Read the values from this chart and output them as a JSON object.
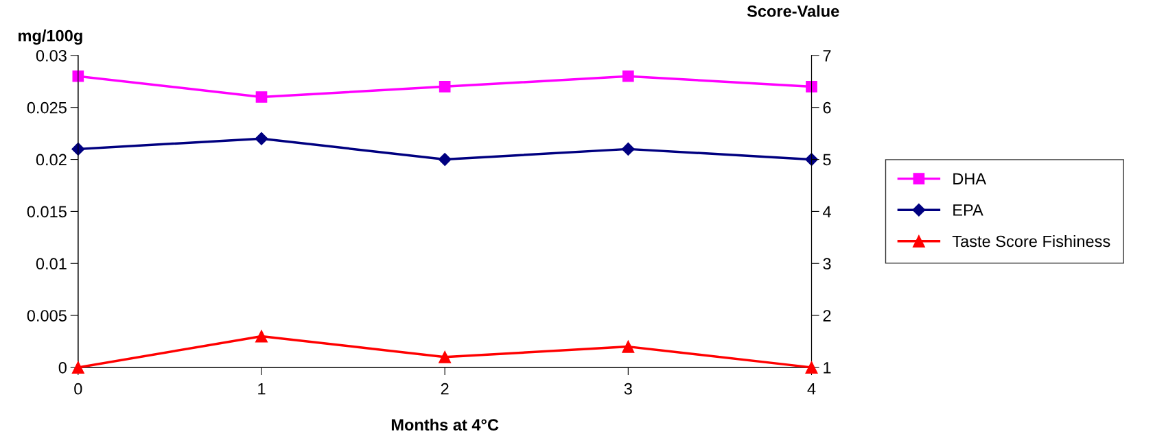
{
  "chart_data": {
    "type": "line",
    "xlabel": "Months at 4°C",
    "ylabel": "mg/100g",
    "y2label": "Score-Value",
    "x": [
      0,
      1,
      2,
      3,
      4
    ],
    "series": [
      {
        "name": "DHA",
        "color": "#ff00ff",
        "marker": "square",
        "values": [
          0.028,
          0.026,
          0.027,
          0.028,
          0.027
        ]
      },
      {
        "name": "EPA",
        "color": "#000080",
        "marker": "diamond",
        "values": [
          0.021,
          0.022,
          0.02,
          0.021,
          0.02
        ]
      },
      {
        "name": "Taste Score Fishiness",
        "color": "#ff0000",
        "marker": "triangle",
        "axis": "y2",
        "values": [
          1.0,
          1.6,
          1.2,
          1.4,
          1.0
        ]
      }
    ],
    "xlim": [
      0,
      4
    ],
    "xticks": [
      0,
      1,
      2,
      3,
      4
    ],
    "ylim": [
      0,
      0.03
    ],
    "yticks": [
      0,
      0.005,
      0.01,
      0.015,
      0.02,
      0.025,
      0.03
    ],
    "y2lim": [
      1,
      7
    ],
    "y2ticks": [
      1,
      2,
      3,
      4,
      5,
      6,
      7
    ],
    "grid": false,
    "legend": "right",
    "line_style": "solid"
  }
}
